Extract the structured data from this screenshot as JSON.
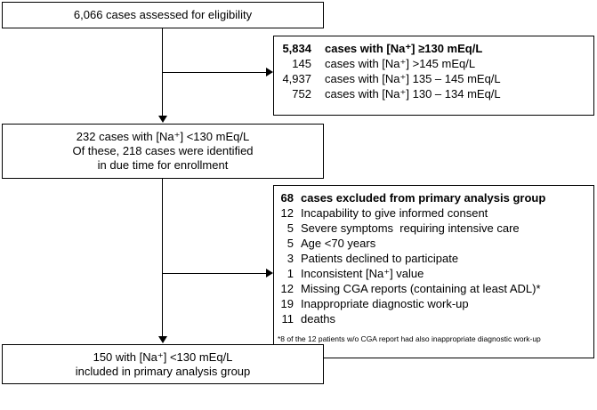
{
  "box_top": {
    "text": "6,066 cases assessed for eligibility"
  },
  "box_eligible": {
    "rows": [
      {
        "num": "5,834",
        "text": "cases with [Na⁺] ≥130 mEq/L",
        "bold": true
      },
      {
        "num": "145",
        "text": "cases with [Na⁺] >145 mEq/L",
        "bold": false
      },
      {
        "num": "4,937",
        "text": "cases with [Na⁺] 135 – 145 mEq/L",
        "bold": false
      },
      {
        "num": "752",
        "text": "cases with [Na⁺] 130 – 134 mEq/L",
        "bold": false
      }
    ]
  },
  "box_hypo": {
    "line1": "232 cases with [Na⁺] <130 mEq/L",
    "line2": "Of these, 218 cases were identified",
    "line3": "in due time for enrollment"
  },
  "box_excluded": {
    "rows": [
      {
        "num": "68",
        "text": "cases excluded from primary analysis group",
        "bold": true
      },
      {
        "num": "12",
        "text": "Incapability to give informed consent",
        "bold": false
      },
      {
        "num": "5",
        "text": "Severe symptoms  requiring intensive care",
        "bold": false
      },
      {
        "num": "5",
        "text": "Age <70 years",
        "bold": false
      },
      {
        "num": "3",
        "text": "Patients declined to participate",
        "bold": false
      },
      {
        "num": "1",
        "text": "Inconsistent [Na⁺] value",
        "bold": false
      },
      {
        "num": "12",
        "text": "Missing CGA reports (containing at least ADL)*",
        "bold": false
      },
      {
        "num": "19",
        "text": "Inappropriate diagnostic work-up",
        "bold": false
      },
      {
        "num": "11",
        "text": "deaths",
        "bold": false
      }
    ],
    "footnote": "*8 of the 12 patients w/o CGA report had also inappropriate diagnostic work-up"
  },
  "box_final": {
    "line1": "150 with [Na⁺] <130 mEq/L",
    "line2": "included in primary analysis group"
  }
}
